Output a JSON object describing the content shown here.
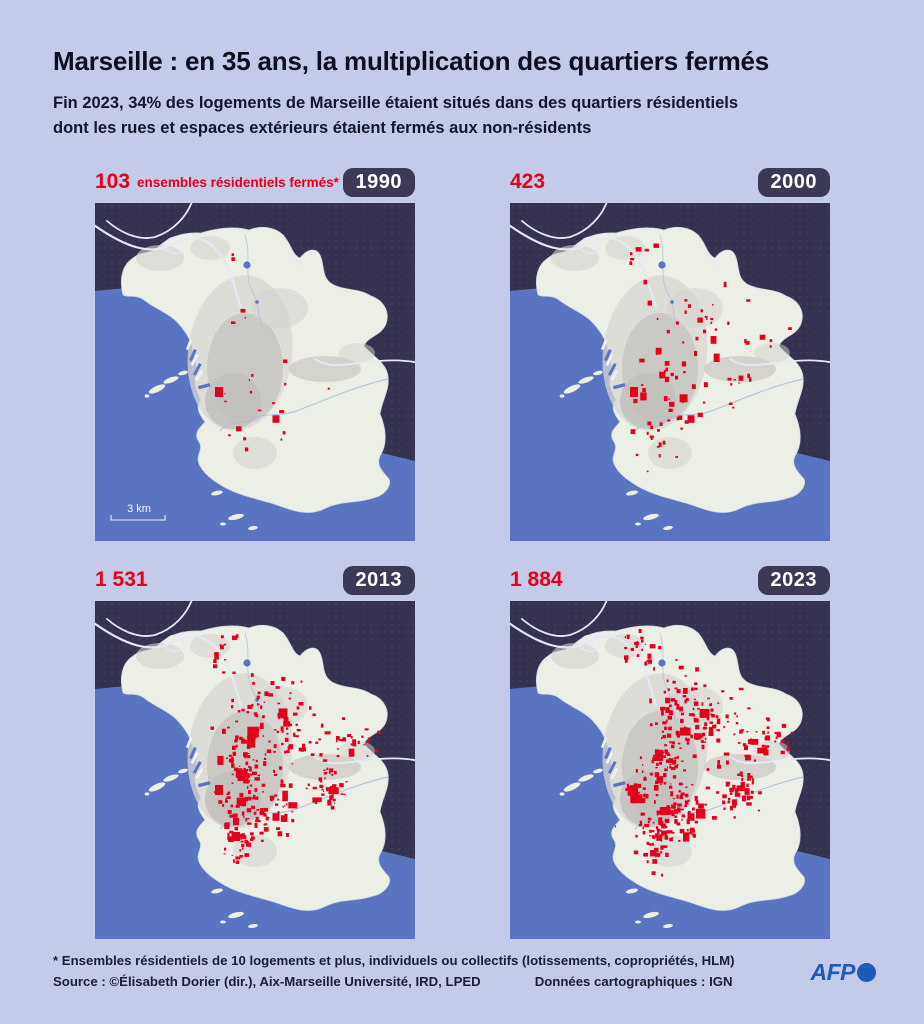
{
  "header": {
    "title": "Marseille : en 35 ans, la multiplication des quartiers fermés",
    "subtitle_line1": "Fin 2023, 34% des logements de Marseille étaient situés dans des quartiers résidentiels",
    "subtitle_line2": "dont les rues et espaces extérieurs étaient fermés aux non-résidents"
  },
  "legend_label": "ensembles résidentiels fermés*",
  "scale_label": "3 km",
  "panels": [
    {
      "year": "1990",
      "count": "103",
      "count_value": 103
    },
    {
      "year": "2000",
      "count": "423",
      "count_value": 423
    },
    {
      "year": "2013",
      "count": "1 531",
      "count_value": 1531
    },
    {
      "year": "2023",
      "count": "1 884",
      "count_value": 1884
    }
  ],
  "chart_data": {
    "type": "table",
    "title": "Ensembles résidentiels fermés à Marseille",
    "categories": [
      "1990",
      "2000",
      "2013",
      "2023"
    ],
    "values": [
      103,
      423,
      1531,
      1884
    ]
  },
  "footer": {
    "footnote": "* Ensembles résidentiels de 10 logements et plus, individuels ou collectifs (lotissements, copropriétés, HLM)",
    "source": "Source : ©Élisabeth Dorier (dir.), Aix-Marseille Université, IRD, LPED",
    "cartography": "Données cartographiques : IGN",
    "logo_text": "AFP"
  },
  "colors": {
    "page_bg": "#c4cbe8",
    "accent_red": "#e2001a",
    "map_background": "#34324e",
    "sea": "#5974c1",
    "land": "#ebefe6",
    "badge_bg": "#3b3953",
    "afp_blue": "#1f5ab4"
  }
}
